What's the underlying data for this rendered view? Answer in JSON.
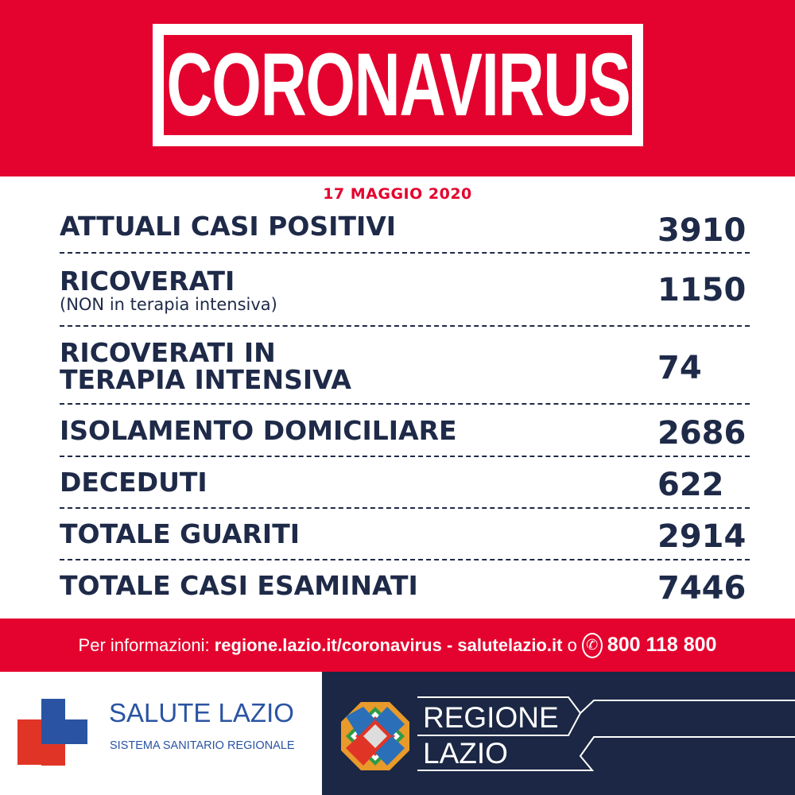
{
  "header": {
    "title": "CORONAVIRUS"
  },
  "date": "17 MAGGIO 2020",
  "rows": [
    {
      "label": "ATTUALI CASI POSITIVI",
      "value": "3910"
    },
    {
      "label": "RICOVERATI",
      "sublabel": "(NON in terapia intensiva)",
      "value": "1150"
    },
    {
      "label": "RICOVERATI IN",
      "label2": "TERAPIA INTENSIVA",
      "value": "74"
    },
    {
      "label": "ISOLAMENTO DOMICILIARE",
      "value": "2686"
    },
    {
      "label": "DECEDUTI",
      "value": "622"
    },
    {
      "label": "TOTALE GUARITI",
      "value": "2914"
    },
    {
      "label": "TOTALE CASI ESAMINATI",
      "value": "7446"
    }
  ],
  "info": {
    "prefix": "Per informazioni:",
    "site1": "regione.lazio.it/coronavirus",
    "sep": "-",
    "site2": "salutelazio.it",
    "or": "o",
    "phone": "800 118 800",
    "phone_icon": "phone-icon"
  },
  "logos": {
    "salute_title": "SALUTE LAZIO",
    "salute_sub": "SISTEMA SANITARIO REGIONALE",
    "regione_line1": "REGIONE",
    "regione_line2": "LAZIO"
  },
  "colors": {
    "red": "#e4032e",
    "navy": "#1e2a48",
    "logo_blue": "#2a54a3",
    "logo_red": "#e03526",
    "footer_navy": "#1b2744"
  }
}
